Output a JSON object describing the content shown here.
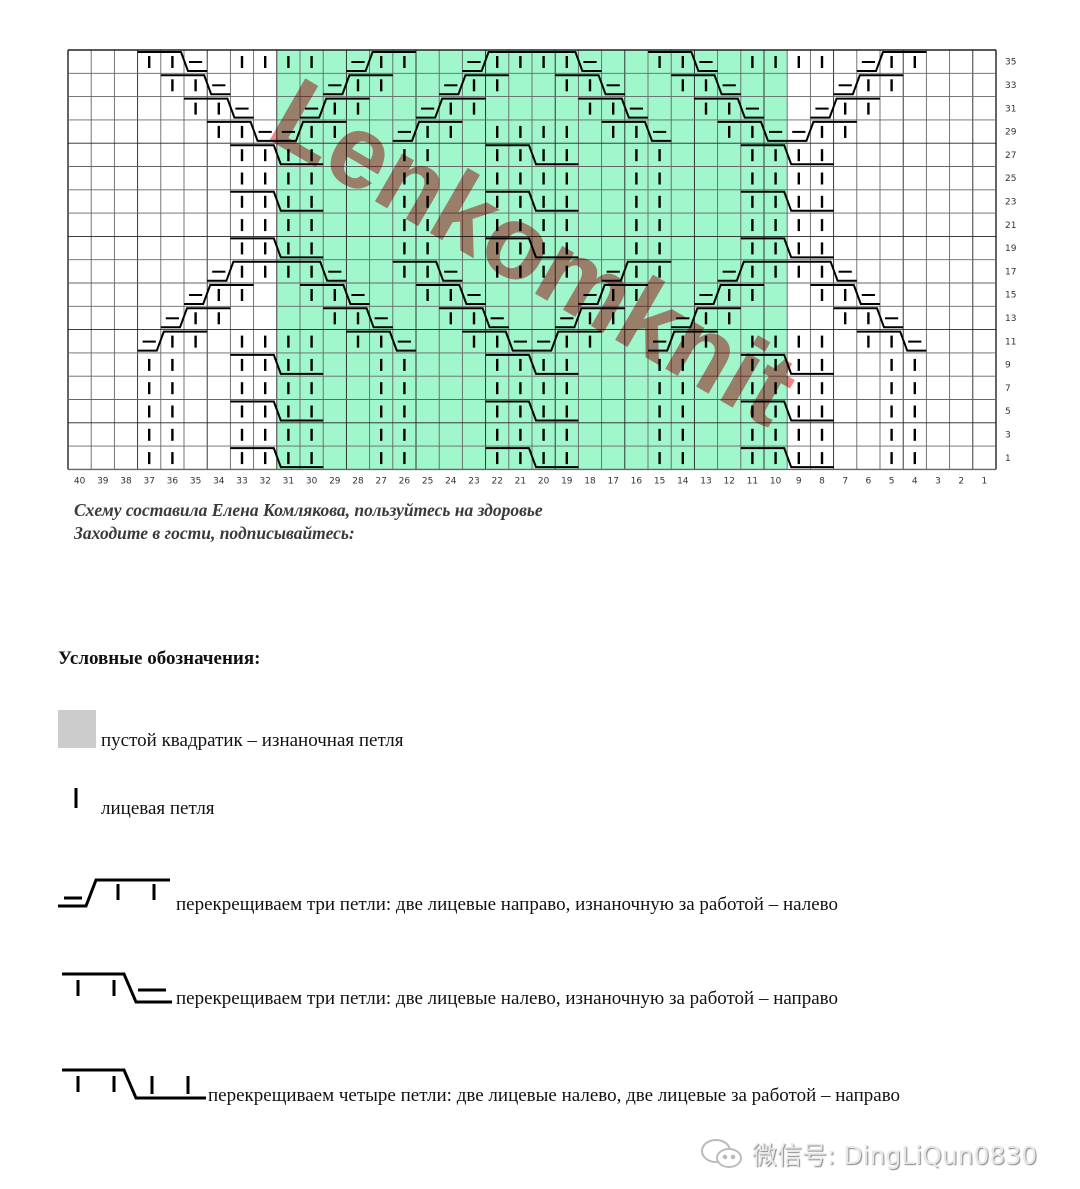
{
  "chart": {
    "columns_from_left": [
      40,
      39,
      38,
      37,
      36,
      35,
      34,
      33,
      32,
      31,
      30,
      29,
      28,
      27,
      26,
      25,
      24,
      23,
      22,
      21,
      20,
      19,
      18,
      17,
      16,
      15,
      14,
      13,
      12,
      11,
      10,
      9,
      8,
      7,
      6,
      5,
      4,
      3,
      2,
      1
    ],
    "row_labels": [
      35,
      33,
      31,
      29,
      27,
      25,
      23,
      21,
      19,
      17,
      15,
      13,
      11,
      9,
      7,
      5,
      3,
      1
    ],
    "highlight_columns": [
      31,
      10
    ],
    "highlight_color": "#a0f7cc",
    "rows": {
      "35": {
        "knit": [
          33,
          32,
          31,
          30,
          11,
          10,
          9,
          8
        ],
        "cables": [
          {
            "type": "L3",
            "cols": [
              37,
              36,
              35
            ]
          },
          {
            "type": "R3",
            "cols": [
              28,
              27,
              26
            ]
          },
          {
            "type": "R3",
            "cols": [
              23,
              22,
              21
            ]
          },
          {
            "type": "L3",
            "cols": [
              20,
              19,
              18
            ]
          },
          {
            "type": "L3",
            "cols": [
              15,
              14,
              13
            ]
          },
          {
            "type": "R3",
            "cols": [
              6,
              5,
              4
            ]
          }
        ]
      },
      "33": {
        "knit": [],
        "cables": [
          {
            "type": "L3",
            "cols": [
              36,
              35,
              34
            ]
          },
          {
            "type": "R3",
            "cols": [
              29,
              28,
              27
            ]
          },
          {
            "type": "R3",
            "cols": [
              24,
              23,
              22
            ]
          },
          {
            "type": "L3",
            "cols": [
              19,
              18,
              17
            ]
          },
          {
            "type": "L3",
            "cols": [
              14,
              13,
              12
            ]
          },
          {
            "type": "R3",
            "cols": [
              7,
              6,
              5
            ]
          }
        ]
      },
      "31": {
        "knit": [],
        "cables": [
          {
            "type": "L3",
            "cols": [
              35,
              34,
              33
            ]
          },
          {
            "type": "R3",
            "cols": [
              30,
              29,
              28
            ]
          },
          {
            "type": "R3",
            "cols": [
              25,
              24,
              23
            ]
          },
          {
            "type": "L3",
            "cols": [
              18,
              17,
              16
            ]
          },
          {
            "type": "L3",
            "cols": [
              13,
              12,
              11
            ]
          },
          {
            "type": "R3",
            "cols": [
              8,
              7,
              6
            ]
          }
        ]
      },
      "29": {
        "knit": [
          22,
          21,
          20,
          19
        ],
        "cables": [
          {
            "type": "L3",
            "cols": [
              34,
              33,
              32
            ]
          },
          {
            "type": "R3",
            "cols": [
              31,
              30,
              29
            ]
          },
          {
            "type": "R3",
            "cols": [
              26,
              25,
              24
            ]
          },
          {
            "type": "L3",
            "cols": [
              17,
              16,
              15
            ]
          },
          {
            "type": "L3",
            "cols": [
              12,
              11,
              10
            ]
          },
          {
            "type": "R3",
            "cols": [
              9,
              8,
              7
            ]
          }
        ]
      },
      "27": {
        "knit": [
          26,
          25,
          16,
          15
        ],
        "cables": [
          {
            "type": "C4",
            "cols": [
              33,
              32,
              31,
              30
            ]
          },
          {
            "type": "C4",
            "cols": [
              22,
              21,
              20,
              19
            ]
          },
          {
            "type": "C4",
            "cols": [
              11,
              10,
              9,
              8
            ]
          }
        ]
      },
      "25": {
        "knit": [
          33,
          32,
          31,
          30,
          26,
          25,
          22,
          21,
          20,
          19,
          16,
          15,
          11,
          10,
          9,
          8
        ],
        "cables": []
      },
      "23": {
        "knit": [
          26,
          25,
          16,
          15
        ],
        "cables": [
          {
            "type": "C4",
            "cols": [
              33,
              32,
              31,
              30
            ]
          },
          {
            "type": "C4",
            "cols": [
              22,
              21,
              20,
              19
            ]
          },
          {
            "type": "C4",
            "cols": [
              11,
              10,
              9,
              8
            ]
          }
        ]
      },
      "21": {
        "knit": [
          33,
          32,
          31,
          30,
          26,
          25,
          22,
          21,
          20,
          19,
          16,
          15,
          11,
          10,
          9,
          8
        ],
        "cables": []
      },
      "19": {
        "knit": [
          26,
          25,
          16,
          15
        ],
        "cables": [
          {
            "type": "C4",
            "cols": [
              33,
              32,
              31,
              30
            ]
          },
          {
            "type": "C4",
            "cols": [
              22,
              21,
              20,
              19
            ]
          },
          {
            "type": "C4",
            "cols": [
              11,
              10,
              9,
              8
            ]
          }
        ]
      },
      "17": {
        "knit": [
          22,
          21,
          20,
          19
        ],
        "cables": [
          {
            "type": "R3",
            "cols": [
              34,
              33,
              32
            ]
          },
          {
            "type": "L3",
            "cols": [
              31,
              30,
              29
            ]
          },
          {
            "type": "L3",
            "cols": [
              26,
              25,
              24
            ]
          },
          {
            "type": "R3",
            "cols": [
              17,
              16,
              15
            ]
          },
          {
            "type": "R3",
            "cols": [
              12,
              11,
              10
            ]
          },
          {
            "type": "L3",
            "cols": [
              9,
              8,
              7
            ]
          }
        ]
      },
      "15": {
        "knit": [],
        "cables": [
          {
            "type": "R3",
            "cols": [
              35,
              34,
              33
            ]
          },
          {
            "type": "L3",
            "cols": [
              30,
              29,
              28
            ]
          },
          {
            "type": "L3",
            "cols": [
              25,
              24,
              23
            ]
          },
          {
            "type": "R3",
            "cols": [
              18,
              17,
              16
            ]
          },
          {
            "type": "R3",
            "cols": [
              13,
              12,
              11
            ]
          },
          {
            "type": "L3",
            "cols": [
              8,
              7,
              6
            ]
          }
        ]
      },
      "13": {
        "knit": [],
        "cables": [
          {
            "type": "R3",
            "cols": [
              36,
              35,
              34
            ]
          },
          {
            "type": "L3",
            "cols": [
              29,
              28,
              27
            ]
          },
          {
            "type": "L3",
            "cols": [
              24,
              23,
              22
            ]
          },
          {
            "type": "R3",
            "cols": [
              19,
              18,
              17
            ]
          },
          {
            "type": "R3",
            "cols": [
              14,
              13,
              12
            ]
          },
          {
            "type": "L3",
            "cols": [
              7,
              6,
              5
            ]
          }
        ]
      },
      "11": {
        "knit": [
          33,
          32,
          31,
          30,
          11,
          10,
          9,
          8
        ],
        "cables": [
          {
            "type": "R3",
            "cols": [
              37,
              36,
              35
            ]
          },
          {
            "type": "L3",
            "cols": [
              28,
              27,
              26
            ]
          },
          {
            "type": "L3",
            "cols": [
              23,
              22,
              21
            ]
          },
          {
            "type": "R3",
            "cols": [
              20,
              19,
              18
            ]
          },
          {
            "type": "R3",
            "cols": [
              15,
              14,
              13
            ]
          },
          {
            "type": "L3",
            "cols": [
              6,
              5,
              4
            ]
          }
        ]
      },
      "9": {
        "knit": [
          37,
          36,
          27,
          26,
          15,
          14,
          5,
          4
        ],
        "cables": [
          {
            "type": "C4",
            "cols": [
              33,
              32,
              31,
              30
            ]
          },
          {
            "type": "C4",
            "cols": [
              22,
              21,
              20,
              19
            ]
          },
          {
            "type": "C4",
            "cols": [
              11,
              10,
              9,
              8
            ]
          }
        ]
      },
      "7": {
        "knit": [
          37,
          36,
          33,
          32,
          31,
          30,
          27,
          26,
          22,
          21,
          20,
          19,
          15,
          14,
          11,
          10,
          9,
          8,
          5,
          4
        ],
        "cables": []
      },
      "5": {
        "knit": [
          37,
          36,
          27,
          26,
          15,
          14,
          5,
          4
        ],
        "cables": [
          {
            "type": "C4",
            "cols": [
              33,
              32,
              31,
              30
            ]
          },
          {
            "type": "C4",
            "cols": [
              22,
              21,
              20,
              19
            ]
          },
          {
            "type": "C4",
            "cols": [
              11,
              10,
              9,
              8
            ]
          }
        ]
      },
      "3": {
        "knit": [
          37,
          36,
          33,
          32,
          31,
          30,
          27,
          26,
          22,
          21,
          20,
          19,
          15,
          14,
          11,
          10,
          9,
          8,
          5,
          4
        ],
        "cables": []
      },
      "1": {
        "knit": [
          37,
          36,
          27,
          26,
          15,
          14,
          5,
          4
        ],
        "cables": [
          {
            "type": "C4",
            "cols": [
              33,
              32,
              31,
              30
            ]
          },
          {
            "type": "C4",
            "cols": [
              22,
              21,
              20,
              19
            ]
          },
          {
            "type": "C4",
            "cols": [
              11,
              10,
              9,
              8
            ]
          }
        ]
      }
    },
    "watermark": "Lenkomknit",
    "watermark_color": "#f26d6d"
  },
  "captions": {
    "line1": "Схему составила Елена Комлякова, пользуйтесь на здоровье",
    "line2": "Заходите в гости, подписывайтесь:"
  },
  "legend": {
    "title": "Условные обозначения:",
    "purl": "пустой квадратик – изнаночная петля",
    "purl_color": "#cccccc",
    "knit": "лицевая петля",
    "cable_right": "перекрещиваем три петли: две лицевые направо, изнаночную за работой – налево",
    "cable_left": "перекрещиваем три петли: две лицевые налево, изнаночную за работой – направо",
    "cable_four": "перекрещиваем четыре петли: две лицевые налево, две лицевые  за работой – направо"
  },
  "footer": {
    "wechat": "微信号: DingLiQun0830",
    "icon": "wechat-icon"
  }
}
